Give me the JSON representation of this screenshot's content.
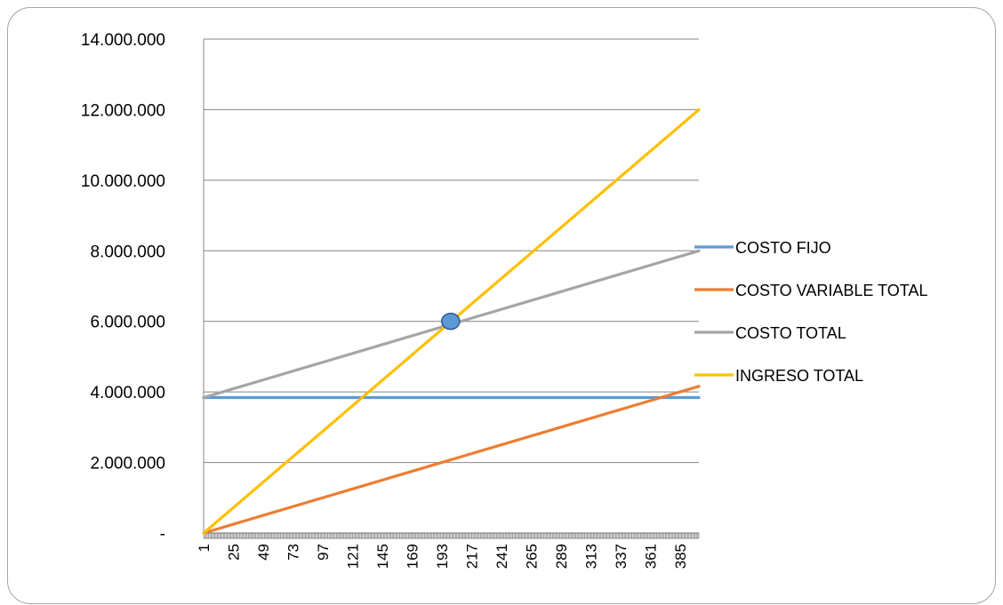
{
  "chart_data": {
    "type": "line",
    "title": "",
    "xlabel": "",
    "ylabel": "",
    "x_range": [
      1,
      400
    ],
    "x_tick_labels": [
      "1",
      "25",
      "49",
      "73",
      "97",
      "121",
      "145",
      "169",
      "193",
      "217",
      "241",
      "265",
      "289",
      "313",
      "337",
      "361",
      "385"
    ],
    "ylim": [
      0,
      14000000
    ],
    "y_ticks": [
      0,
      2000000,
      4000000,
      6000000,
      8000000,
      10000000,
      12000000,
      14000000
    ],
    "y_tick_labels": [
      "-",
      "2.000.000",
      "4.000.000",
      "6.000.000",
      "8.000.000",
      "10.000.000",
      "12.000.000",
      "14.000.000"
    ],
    "grid": "horizontal",
    "legend_position": "right",
    "series": [
      {
        "name": "COSTO FIJO",
        "color": "#5b9bd5",
        "x": [
          1,
          400
        ],
        "y": [
          3840000,
          3840000
        ]
      },
      {
        "name": "COSTO VARIABLE TOTAL",
        "color": "#ed7d31",
        "x": [
          1,
          400
        ],
        "y": [
          0,
          4160000
        ]
      },
      {
        "name": "COSTO TOTAL",
        "color": "#a5a5a5",
        "x": [
          1,
          400
        ],
        "y": [
          3840000,
          8000000
        ]
      },
      {
        "name": "INGRESO TOTAL",
        "color": "#ffc000",
        "x": [
          1,
          400
        ],
        "y": [
          0,
          12000000
        ]
      }
    ],
    "annotations": [
      {
        "type": "marker",
        "x": 200,
        "y": 6000000,
        "color": "#5b9bd5"
      }
    ]
  }
}
